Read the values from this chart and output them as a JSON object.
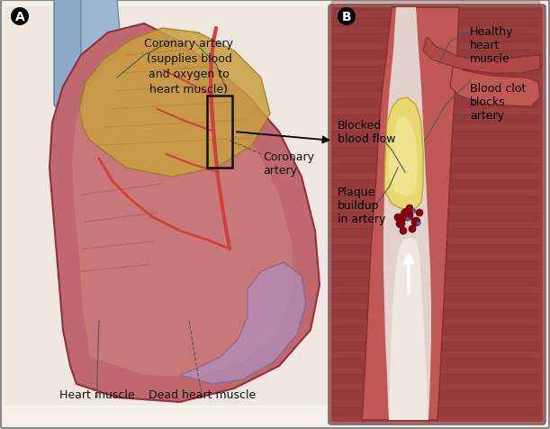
{
  "figure_width": 6.11,
  "figure_height": 4.77,
  "background_color": "#f5f0e8",
  "border_color": "#888888",
  "label_A": "A",
  "label_B": "B",
  "text_coronary_artery_label": "Coronary artery\n(supplies blood\nand oxygen to\nheart muscle)",
  "text_coronary_artery_short": "Coronary\nartery",
  "text_heart_muscle": "Heart muscle",
  "text_dead_heart_muscle": "Dead heart muscle",
  "text_healthy_heart_muscle": "Healthy\nheart\nmuscle",
  "text_blood_clot": "Blood clot\nblocks\nartery",
  "text_blocked_blood_flow": "Blocked\nblood flow",
  "text_plaque_buildup": "Plaque\nbuildup\nin artery",
  "annotation_fontsize": 9,
  "font_color": "#111111"
}
